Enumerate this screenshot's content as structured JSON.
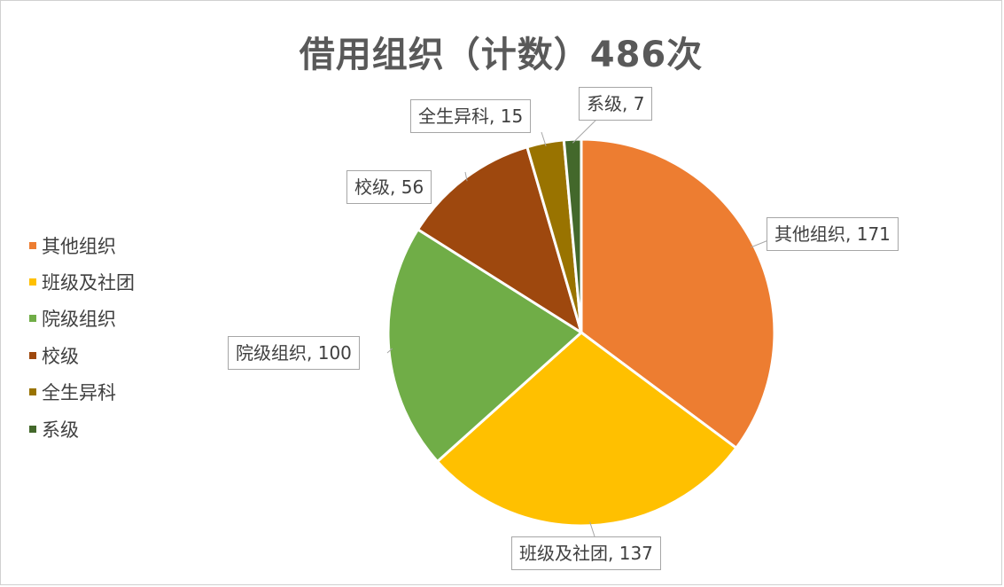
{
  "chart_data": {
    "type": "pie",
    "title": "借用组织（计数）486次",
    "slices": [
      {
        "label": "其他组织",
        "value": 171,
        "color": "#ED7D31",
        "callout": "其他组织, 171"
      },
      {
        "label": "班级及社团",
        "value": 137,
        "color": "#FFC000",
        "callout": "班级及社团, 137"
      },
      {
        "label": "院级组织",
        "value": 100,
        "color": "#70AD47",
        "callout": "院级组织, 100"
      },
      {
        "label": "校级",
        "value": 56,
        "color": "#9E480E",
        "callout": "校级, 56"
      },
      {
        "label": "全生异科",
        "value": 15,
        "color": "#997300",
        "callout": "全生异科, 15"
      },
      {
        "label": "系级",
        "value": 7,
        "color": "#43682B",
        "callout": "系级, 7"
      }
    ],
    "legend": {
      "position": "left"
    }
  }
}
